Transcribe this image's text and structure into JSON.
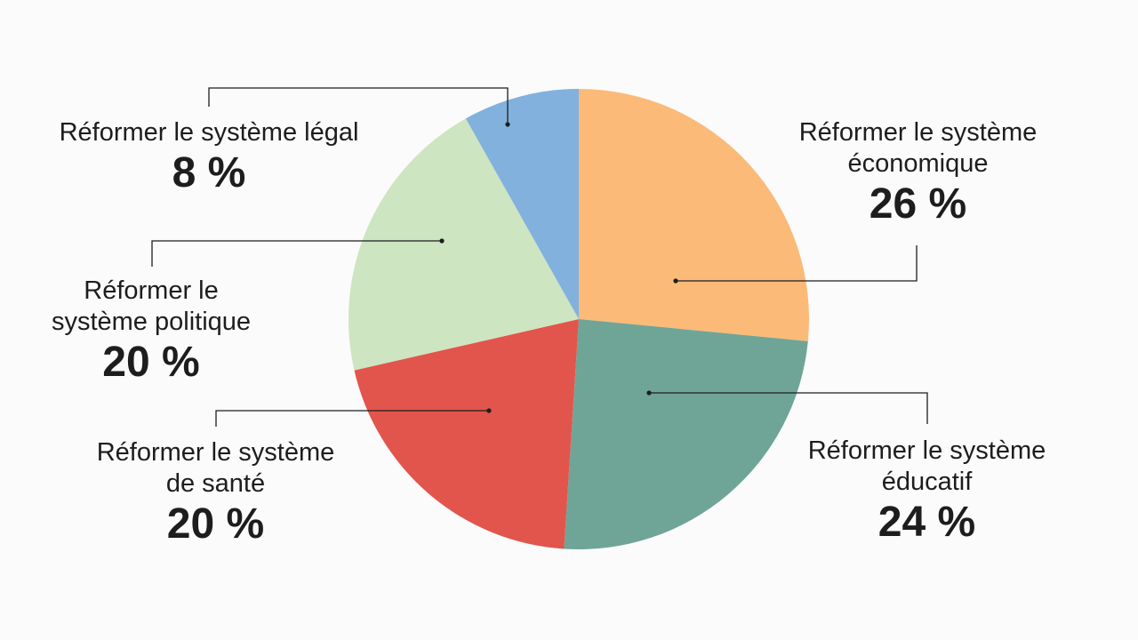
{
  "chart_data": {
    "type": "pie",
    "unit": "%",
    "slices": [
      {
        "label": "Réformer le système\néconomique",
        "value": 26,
        "value_text": "26 %",
        "color": "#fbba78"
      },
      {
        "label": "Réformer le système\néducatif",
        "value": 24,
        "value_text": "24 %",
        "color": "#6fa596"
      },
      {
        "label": "Réformer le système\nde santé",
        "value": 20,
        "value_text": "20 %",
        "color": "#e2554d"
      },
      {
        "label": "Réformer le\nsystème politique",
        "value": 20,
        "value_text": "20 %",
        "color": "#cde5c0"
      },
      {
        "label": "Réformer le système légal",
        "value": 8,
        "value_text": "8 %",
        "color": "#82b1de"
      }
    ]
  }
}
